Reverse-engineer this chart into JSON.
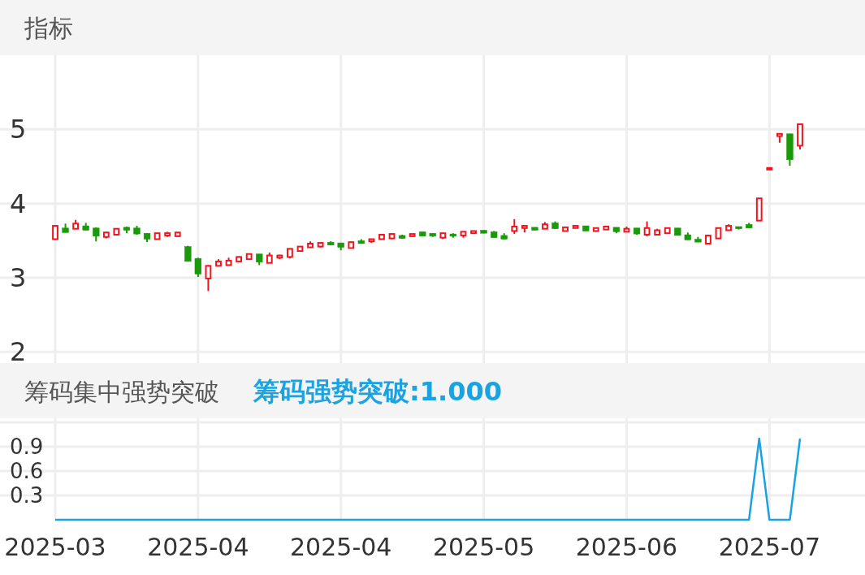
{
  "chart_data": [
    {
      "type": "candlestick",
      "title": "指标",
      "tick_labels": "y",
      "grid": true,
      "ylim": [
        1.85,
        6
      ],
      "yticks": [
        2,
        3,
        4,
        5
      ],
      "categories": [
        "2025-03",
        null,
        null,
        null,
        null,
        null,
        null,
        null,
        null,
        null,
        null,
        null,
        null,
        null,
        "2025-04",
        null,
        null,
        null,
        null,
        null,
        null,
        null,
        null,
        null,
        null,
        null,
        null,
        null,
        "2025-04",
        null,
        null,
        null,
        null,
        null,
        null,
        null,
        null,
        null,
        null,
        null,
        null,
        null,
        "2025-05",
        null,
        null,
        null,
        null,
        null,
        null,
        null,
        null,
        null,
        null,
        null,
        null,
        null,
        "2025-06",
        null,
        null,
        null,
        null,
        null,
        null,
        null,
        null,
        null,
        null,
        null,
        null,
        null,
        "2025-07",
        null,
        null,
        null
      ],
      "ohlc": [
        [
          3.52,
          3.71,
          3.51,
          3.7
        ],
        [
          3.67,
          3.73,
          3.61,
          3.61
        ],
        [
          3.66,
          3.78,
          3.66,
          3.73
        ],
        [
          3.7,
          3.74,
          3.64,
          3.64
        ],
        [
          3.67,
          3.68,
          3.49,
          3.56
        ],
        [
          3.55,
          3.62,
          3.53,
          3.61
        ],
        [
          3.58,
          3.66,
          3.58,
          3.66
        ],
        [
          3.68,
          3.69,
          3.6,
          3.64
        ],
        [
          3.67,
          3.7,
          3.58,
          3.59
        ],
        [
          3.6,
          3.6,
          3.48,
          3.52
        ],
        [
          3.52,
          3.6,
          3.52,
          3.6
        ],
        [
          3.57,
          3.62,
          3.55,
          3.6
        ],
        [
          3.56,
          3.61,
          3.55,
          3.61
        ],
        [
          3.42,
          3.43,
          3.22,
          3.22
        ],
        [
          3.26,
          3.27,
          3.01,
          3.05
        ],
        [
          2.99,
          3.17,
          2.82,
          3.16
        ],
        [
          3.16,
          3.25,
          3.16,
          3.22
        ],
        [
          3.17,
          3.27,
          3.17,
          3.23
        ],
        [
          3.22,
          3.29,
          3.22,
          3.28
        ],
        [
          3.25,
          3.32,
          3.24,
          3.32
        ],
        [
          3.32,
          3.32,
          3.17,
          3.21
        ],
        [
          3.2,
          3.34,
          3.2,
          3.3
        ],
        [
          3.27,
          3.31,
          3.25,
          3.3
        ],
        [
          3.28,
          3.39,
          3.26,
          3.39
        ],
        [
          3.36,
          3.42,
          3.36,
          3.42
        ],
        [
          3.41,
          3.49,
          3.41,
          3.46
        ],
        [
          3.42,
          3.47,
          3.41,
          3.47
        ],
        [
          3.48,
          3.49,
          3.44,
          3.44
        ],
        [
          3.47,
          3.47,
          3.37,
          3.41
        ],
        [
          3.4,
          3.48,
          3.4,
          3.48
        ],
        [
          3.5,
          3.52,
          3.46,
          3.46
        ],
        [
          3.49,
          3.52,
          3.47,
          3.52
        ],
        [
          3.52,
          3.58,
          3.52,
          3.58
        ],
        [
          3.53,
          3.6,
          3.52,
          3.59
        ],
        [
          3.57,
          3.58,
          3.53,
          3.53
        ],
        [
          3.56,
          3.59,
          3.55,
          3.59
        ],
        [
          3.62,
          3.62,
          3.56,
          3.56
        ],
        [
          3.6,
          3.6,
          3.55,
          3.56
        ],
        [
          3.54,
          3.6,
          3.52,
          3.6
        ],
        [
          3.59,
          3.6,
          3.54,
          3.56
        ],
        [
          3.57,
          3.62,
          3.54,
          3.62
        ],
        [
          3.6,
          3.63,
          3.6,
          3.63
        ],
        [
          3.64,
          3.64,
          3.6,
          3.6
        ],
        [
          3.62,
          3.63,
          3.54,
          3.54
        ],
        [
          3.57,
          3.6,
          3.52,
          3.52
        ],
        [
          3.63,
          3.79,
          3.59,
          3.69
        ],
        [
          3.67,
          3.71,
          3.61,
          3.7
        ],
        [
          3.68,
          3.68,
          3.64,
          3.64
        ],
        [
          3.66,
          3.75,
          3.66,
          3.72
        ],
        [
          3.74,
          3.76,
          3.66,
          3.66
        ],
        [
          3.63,
          3.68,
          3.63,
          3.68
        ],
        [
          3.67,
          3.7,
          3.67,
          3.7
        ],
        [
          3.7,
          3.7,
          3.63,
          3.63
        ],
        [
          3.63,
          3.67,
          3.62,
          3.67
        ],
        [
          3.65,
          3.69,
          3.65,
          3.69
        ],
        [
          3.68,
          3.68,
          3.6,
          3.62
        ],
        [
          3.62,
          3.69,
          3.62,
          3.66
        ],
        [
          3.67,
          3.67,
          3.58,
          3.59
        ],
        [
          3.58,
          3.76,
          3.56,
          3.67
        ],
        [
          3.58,
          3.66,
          3.58,
          3.64
        ],
        [
          3.6,
          3.67,
          3.59,
          3.67
        ],
        [
          3.67,
          3.67,
          3.57,
          3.57
        ],
        [
          3.58,
          3.61,
          3.51,
          3.51
        ],
        [
          3.52,
          3.55,
          3.48,
          3.48
        ],
        [
          3.46,
          3.57,
          3.46,
          3.57
        ],
        [
          3.53,
          3.67,
          3.53,
          3.67
        ],
        [
          3.64,
          3.72,
          3.64,
          3.7
        ],
        [
          3.69,
          3.69,
          3.65,
          3.66
        ],
        [
          3.72,
          3.74,
          3.67,
          3.67
        ],
        [
          3.77,
          4.07,
          3.77,
          4.07
        ],
        [
          4.46,
          4.48,
          4.46,
          4.48
        ],
        [
          4.91,
          4.94,
          4.82,
          4.94
        ],
        [
          4.94,
          4.94,
          4.51,
          4.59
        ],
        [
          4.78,
          5.07,
          4.73,
          5.07
        ]
      ]
    },
    {
      "type": "line",
      "title": "筹码集中强势突破",
      "annotations": [
        "筹码强势突破:1.000"
      ],
      "grid": true,
      "color": "#1aa3e0",
      "ylim": [
        0,
        1.25
      ],
      "yticks": [
        0.3,
        0.6,
        0.9,
        {
          "value": 1.2,
          "label": null
        }
      ],
      "categories": [
        "2025-03",
        null,
        null,
        null,
        null,
        null,
        null,
        null,
        null,
        null,
        null,
        null,
        null,
        null,
        "2025-04",
        null,
        null,
        null,
        null,
        null,
        null,
        null,
        null,
        null,
        null,
        null,
        null,
        null,
        "2025-04",
        null,
        null,
        null,
        null,
        null,
        null,
        null,
        null,
        null,
        null,
        null,
        null,
        null,
        "2025-05",
        null,
        null,
        null,
        null,
        null,
        null,
        null,
        null,
        null,
        null,
        null,
        null,
        null,
        "2025-06",
        null,
        null,
        null,
        null,
        null,
        null,
        null,
        null,
        null,
        null,
        null,
        null,
        null,
        "2025-07",
        null,
        null,
        null
      ],
      "values": [
        0,
        0,
        0,
        0,
        0,
        0,
        0,
        0,
        0,
        0,
        0,
        0,
        0,
        0,
        0,
        0,
        0,
        0,
        0,
        0,
        0,
        0,
        0,
        0,
        0,
        0,
        0,
        0,
        0,
        0,
        0,
        0,
        0,
        0,
        0,
        0,
        0,
        0,
        0,
        0,
        0,
        0,
        0,
        0,
        0,
        0,
        0,
        0,
        0,
        0,
        0,
        0,
        0,
        0,
        0,
        0,
        0,
        0,
        0,
        0,
        0,
        0,
        0,
        0,
        0,
        0,
        0,
        0,
        0,
        1,
        0,
        0,
        0,
        1
      ]
    }
  ]
}
